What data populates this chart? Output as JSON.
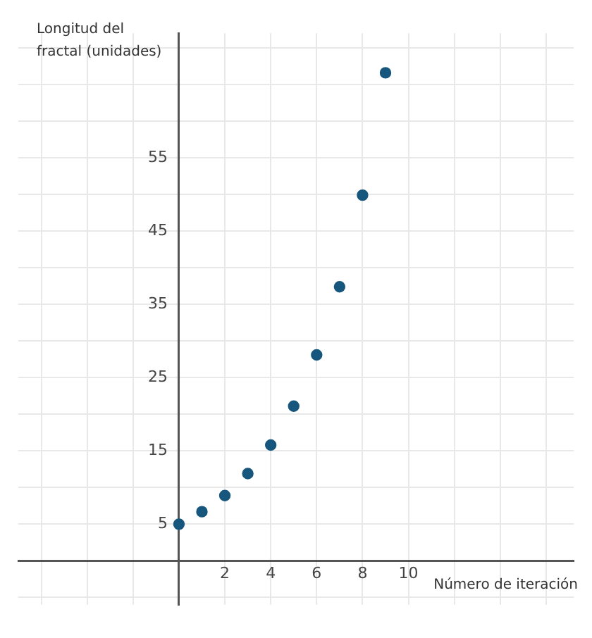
{
  "chart_data": {
    "type": "scatter",
    "xlabel": "Número de iteración",
    "ylabel": "Longitud del fractal (unidades)",
    "x": [
      0,
      1,
      2,
      3,
      4,
      5,
      6,
      7,
      8,
      9
    ],
    "series": [
      {
        "color": "#17567d",
        "values": [
          5,
          6.7,
          8.9,
          11.9,
          15.8,
          21.1,
          28.1,
          37.4,
          49.9,
          66.6
        ]
      }
    ],
    "xlim": [
      -7,
      17.2
    ],
    "ylim": [
      -6,
      72
    ],
    "xticks": [
      {
        "value": -6,
        "label": null
      },
      {
        "value": -4,
        "label": null
      },
      {
        "value": -2,
        "label": null
      },
      {
        "value": 0,
        "label": null
      },
      2,
      4,
      6,
      8,
      10,
      {
        "value": 12,
        "label": null
      },
      {
        "value": 14,
        "label": null
      },
      {
        "value": 16,
        "label": null
      }
    ],
    "yticks": [
      {
        "value": -5,
        "label": null
      },
      {
        "value": 0,
        "label": null
      },
      5,
      {
        "value": 10,
        "label": null
      },
      15,
      {
        "value": 20,
        "label": null
      },
      25,
      {
        "value": 30,
        "label": null
      },
      35,
      {
        "value": 40,
        "label": null
      },
      45,
      {
        "value": 50,
        "label": null
      },
      55,
      {
        "value": 60,
        "label": null
      },
      {
        "value": 65,
        "label": null
      },
      {
        "value": 70,
        "label": null
      }
    ],
    "grid": true,
    "marker": "circle"
  }
}
